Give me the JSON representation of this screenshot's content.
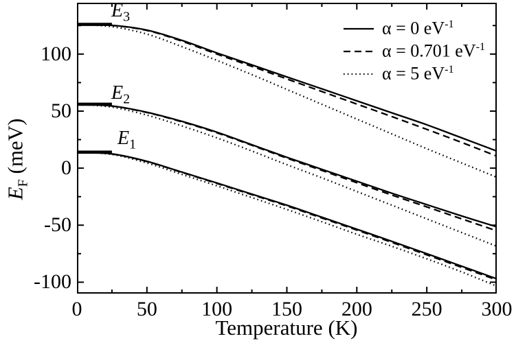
{
  "figure": {
    "background": "#ffffff",
    "ink": "#000000"
  },
  "axes": {
    "x": {
      "label": "Temperature (K)",
      "ticks": [
        0,
        50,
        100,
        150,
        200,
        250,
        300
      ],
      "minor_step": 25,
      "range": [
        0,
        300
      ]
    },
    "y": {
      "label_main": "E",
      "label_sub": "F",
      "label_unit": " (meV)",
      "ticks": [
        -100,
        -50,
        0,
        50,
        100
      ],
      "minor_step": 25,
      "range": [
        -110,
        145
      ]
    }
  },
  "legend": {
    "items": [
      {
        "style": "solid",
        "prefix": "α = 0 eV",
        "sup": "-1"
      },
      {
        "style": "dashed",
        "prefix": "α = 0.701 eV",
        "sup": "-1"
      },
      {
        "style": "dotted",
        "prefix": "α = 5 eV",
        "sup": "-1"
      }
    ]
  },
  "levels": [
    {
      "symbol": "E",
      "sub": "3",
      "value_meV": 126
    },
    {
      "symbol": "E",
      "sub": "2",
      "value_meV": 56
    },
    {
      "symbol": "E",
      "sub": "1",
      "value_meV": 14
    }
  ],
  "chart_data": {
    "type": "line",
    "title": "",
    "xlabel": "Temperature (K)",
    "ylabel": "E_F (meV)",
    "xlim": [
      0,
      300
    ],
    "ylim": [
      -110,
      145
    ],
    "grid": false,
    "legend_position": "upper right",
    "x": [
      0,
      25,
      50,
      75,
      100,
      125,
      150,
      175,
      200,
      225,
      250,
      275,
      300
    ],
    "series": [
      {
        "name": "E3 alpha=0 eV^-1",
        "group": "E3",
        "style": "solid",
        "values": [
          126,
          125.2,
          121,
          112,
          101,
          90.5,
          80,
          69.5,
          59,
          48.5,
          38,
          26.5,
          15
        ]
      },
      {
        "name": "E3 alpha=0.701 eV^-1",
        "group": "E3",
        "style": "dashed",
        "values": [
          126,
          125.1,
          120.7,
          111.3,
          100,
          89.2,
          78.2,
          67.2,
          56.2,
          45.2,
          34,
          22.5,
          10.5
        ]
      },
      {
        "name": "E3 alpha=5 eV^-1",
        "group": "E3",
        "style": "dotted",
        "values": [
          126,
          124,
          117.5,
          106.5,
          94.5,
          82,
          69,
          56,
          43,
          30,
          17,
          4.5,
          -8
        ]
      },
      {
        "name": "E2 alpha=0 eV^-1",
        "group": "E2",
        "style": "solid",
        "values": [
          56,
          54.5,
          49,
          41,
          31.5,
          20.5,
          9.5,
          -1,
          -11.5,
          -22,
          -32,
          -42,
          -51.5
        ]
      },
      {
        "name": "E2 alpha=0.701 eV^-1",
        "group": "E2",
        "style": "dashed",
        "values": [
          56,
          54.4,
          48.8,
          40.6,
          31,
          20,
          8.8,
          -2,
          -12.8,
          -23.6,
          -34,
          -44.5,
          -55
        ]
      },
      {
        "name": "E2 alpha=5 eV^-1",
        "group": "E2",
        "style": "dotted",
        "values": [
          56,
          53.5,
          46.5,
          37,
          26.5,
          15,
          3,
          -8.5,
          -20.5,
          -32.5,
          -44.5,
          -56.5,
          -68.5
        ]
      },
      {
        "name": "E1 alpha=0 eV^-1",
        "group": "E1",
        "style": "solid",
        "values": [
          14,
          12.5,
          6,
          -3.5,
          -13,
          -22.8,
          -32.5,
          -43,
          -53.5,
          -64.2,
          -75,
          -86,
          -97
        ]
      },
      {
        "name": "E1 alpha=0.701 eV^-1",
        "group": "E1",
        "style": "dashed",
        "values": [
          14,
          12.4,
          5.8,
          -3.8,
          -13.4,
          -23.3,
          -33.1,
          -43.7,
          -54.3,
          -65.1,
          -76,
          -87,
          -98
        ]
      },
      {
        "name": "E1 alpha=5 eV^-1",
        "group": "E1",
        "style": "dotted",
        "values": [
          14,
          12,
          4.5,
          -5.5,
          -15.5,
          -25.8,
          -36.2,
          -47,
          -58,
          -68.5,
          -79.5,
          -91,
          -103.5
        ]
      }
    ],
    "level_bars": [
      {
        "label": "E3",
        "meV": 126,
        "T_range": [
          0,
          25
        ]
      },
      {
        "label": "E2",
        "meV": 56,
        "T_range": [
          0,
          25
        ]
      },
      {
        "label": "E1",
        "meV": 14,
        "T_range": [
          0,
          25
        ]
      }
    ]
  }
}
